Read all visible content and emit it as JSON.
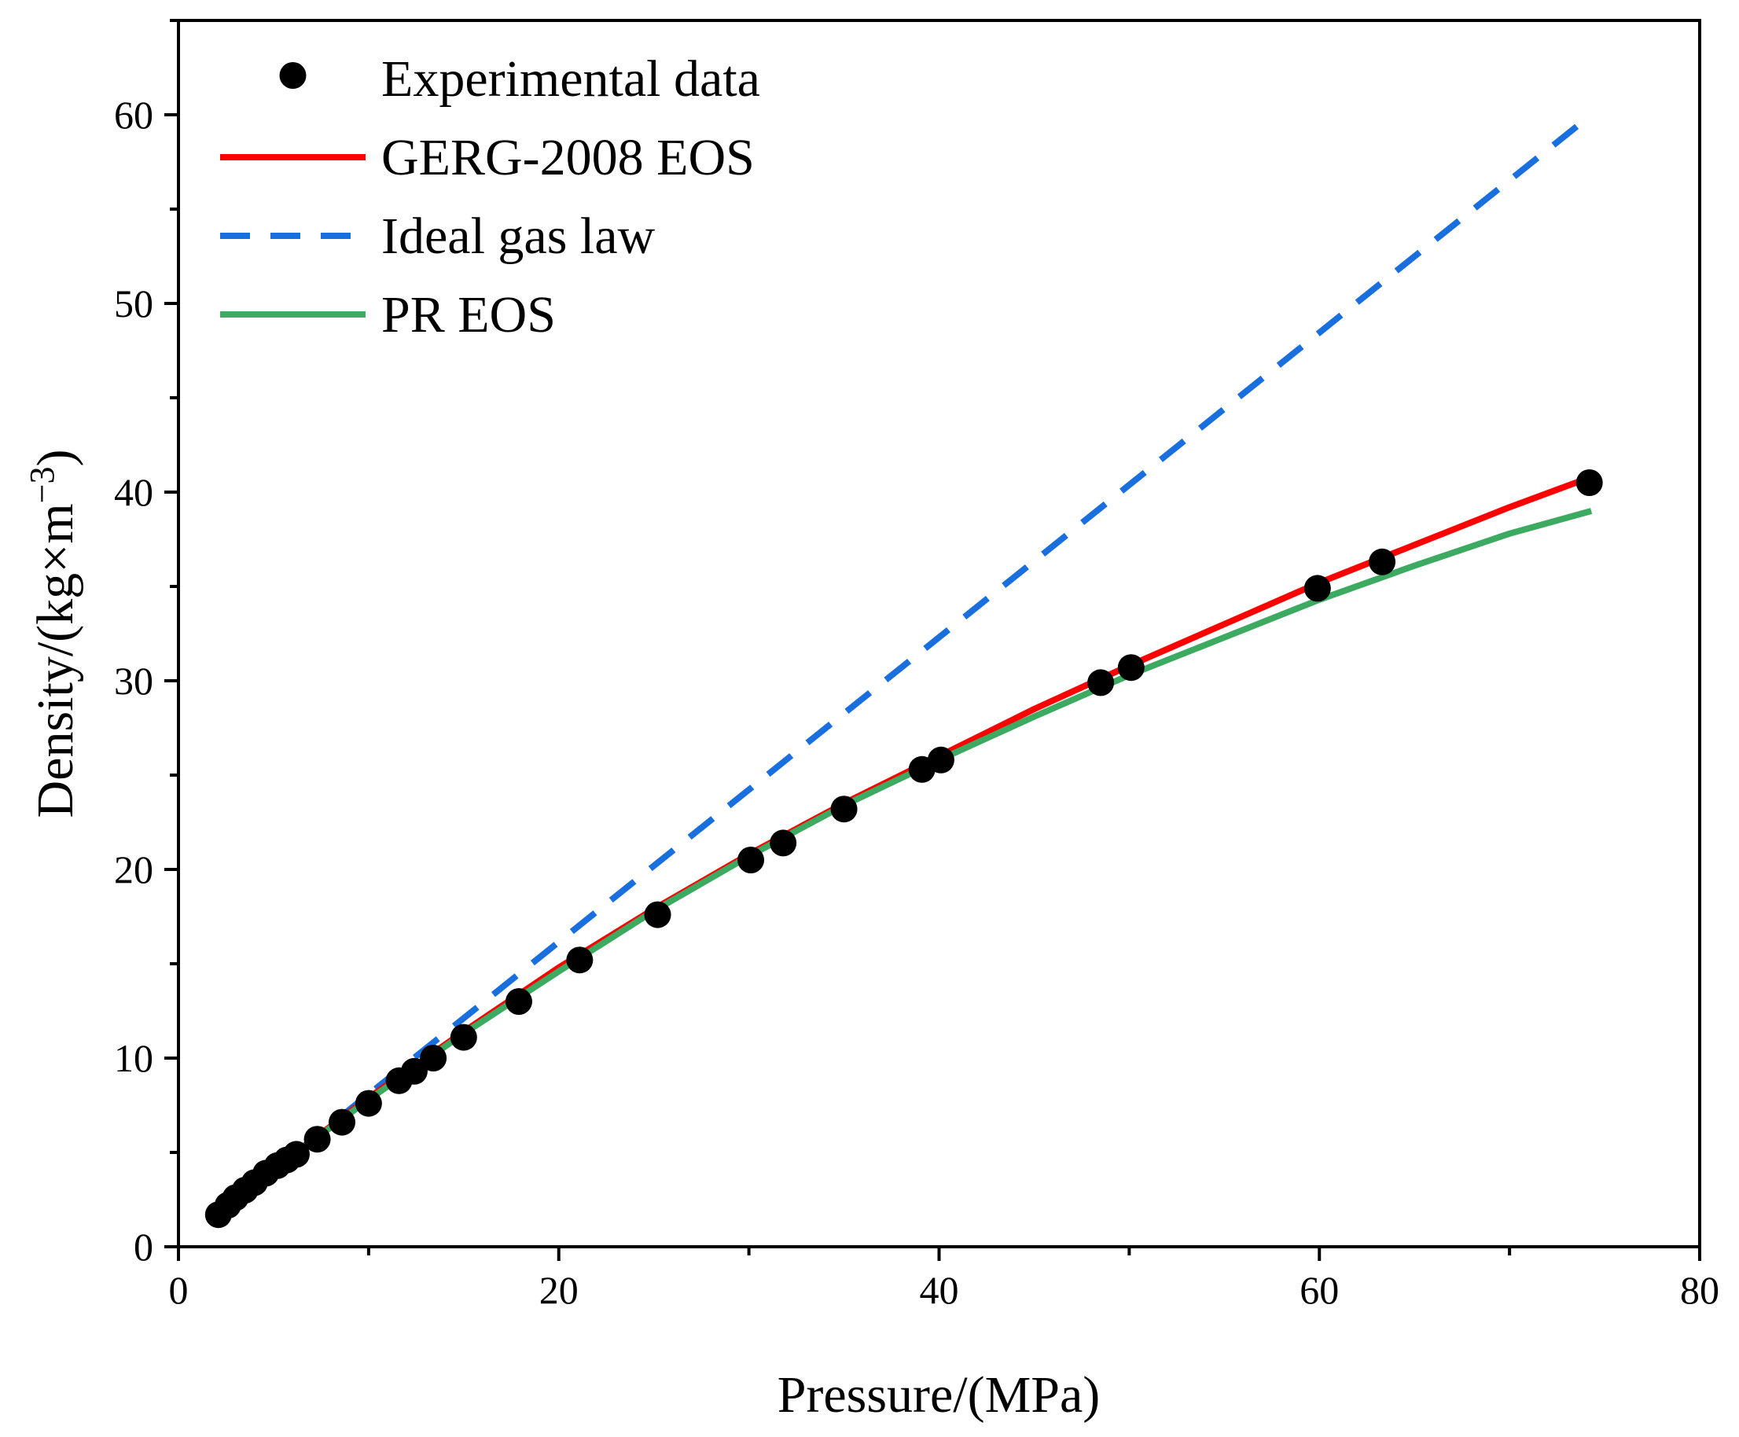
{
  "chart_data": {
    "type": "line",
    "title": "",
    "xlabel": "Pressure/(MPa)",
    "ylabel_main": "Density/(kg×m",
    "ylabel_sup": "−3",
    "ylabel_close": ")",
    "xlim": [
      0,
      80
    ],
    "ylim": [
      0,
      65
    ],
    "xticks": [
      0,
      20,
      40,
      60,
      80
    ],
    "yticks": [
      0,
      10,
      20,
      30,
      40,
      50,
      60
    ],
    "grid": false,
    "legend_position": "top-left",
    "colors": {
      "experimental": "#000000",
      "gerg": "#ff0000",
      "ideal": "#1a6fdf",
      "pr": "#3daa62"
    },
    "legend": [
      {
        "key": "experimental",
        "label": "Experimental data",
        "style": "marker"
      },
      {
        "key": "gerg",
        "label": "GERG-2008 EOS",
        "style": "solid"
      },
      {
        "key": "ideal",
        "label": "Ideal gas law",
        "style": "dashed"
      },
      {
        "key": "pr",
        "label": "PR EOS",
        "style": "solid"
      }
    ],
    "series": [
      {
        "key": "experimental",
        "name": "Experimental data",
        "type": "scatter",
        "x": [
          2.1,
          2.6,
          3.0,
          3.5,
          4.0,
          4.6,
          5.2,
          5.7,
          6.2,
          7.3,
          8.6,
          10.0,
          11.6,
          12.4,
          13.4,
          15.0,
          17.9,
          21.1,
          25.2,
          30.1,
          31.8,
          35.0,
          39.1,
          40.1,
          48.5,
          50.1,
          59.9,
          63.3,
          74.2
        ],
        "y": [
          1.7,
          2.2,
          2.6,
          3.0,
          3.4,
          3.9,
          4.3,
          4.6,
          4.9,
          5.7,
          6.6,
          7.6,
          8.8,
          9.3,
          10.0,
          11.1,
          13.0,
          15.2,
          17.6,
          20.5,
          21.4,
          23.2,
          25.3,
          25.8,
          29.9,
          30.7,
          34.9,
          36.3,
          40.5
        ]
      },
      {
        "key": "gerg",
        "name": "GERG-2008 EOS",
        "type": "line",
        "x": [
          2.1,
          5,
          10,
          15,
          20,
          25,
          30,
          35,
          40,
          45,
          50,
          55,
          60,
          65,
          70,
          74.3
        ],
        "y": [
          1.6,
          4.1,
          7.9,
          11.4,
          14.8,
          17.9,
          20.8,
          23.5,
          26.0,
          28.5,
          30.8,
          33.0,
          35.2,
          37.2,
          39.2,
          40.8
        ]
      },
      {
        "key": "ideal",
        "name": "Ideal gas law",
        "type": "line",
        "x": [
          2.1,
          74.3
        ],
        "y": [
          1.7,
          60.0
        ]
      },
      {
        "key": "pr",
        "name": "PR EOS",
        "type": "line",
        "x": [
          2.1,
          5,
          10,
          15,
          20,
          25,
          30,
          35,
          40,
          45,
          50,
          55,
          60,
          65,
          70,
          74.3
        ],
        "y": [
          1.6,
          4.1,
          7.8,
          11.3,
          14.6,
          17.8,
          20.7,
          23.4,
          25.8,
          28.1,
          30.3,
          32.3,
          34.3,
          36.1,
          37.8,
          39.0
        ]
      }
    ]
  }
}
